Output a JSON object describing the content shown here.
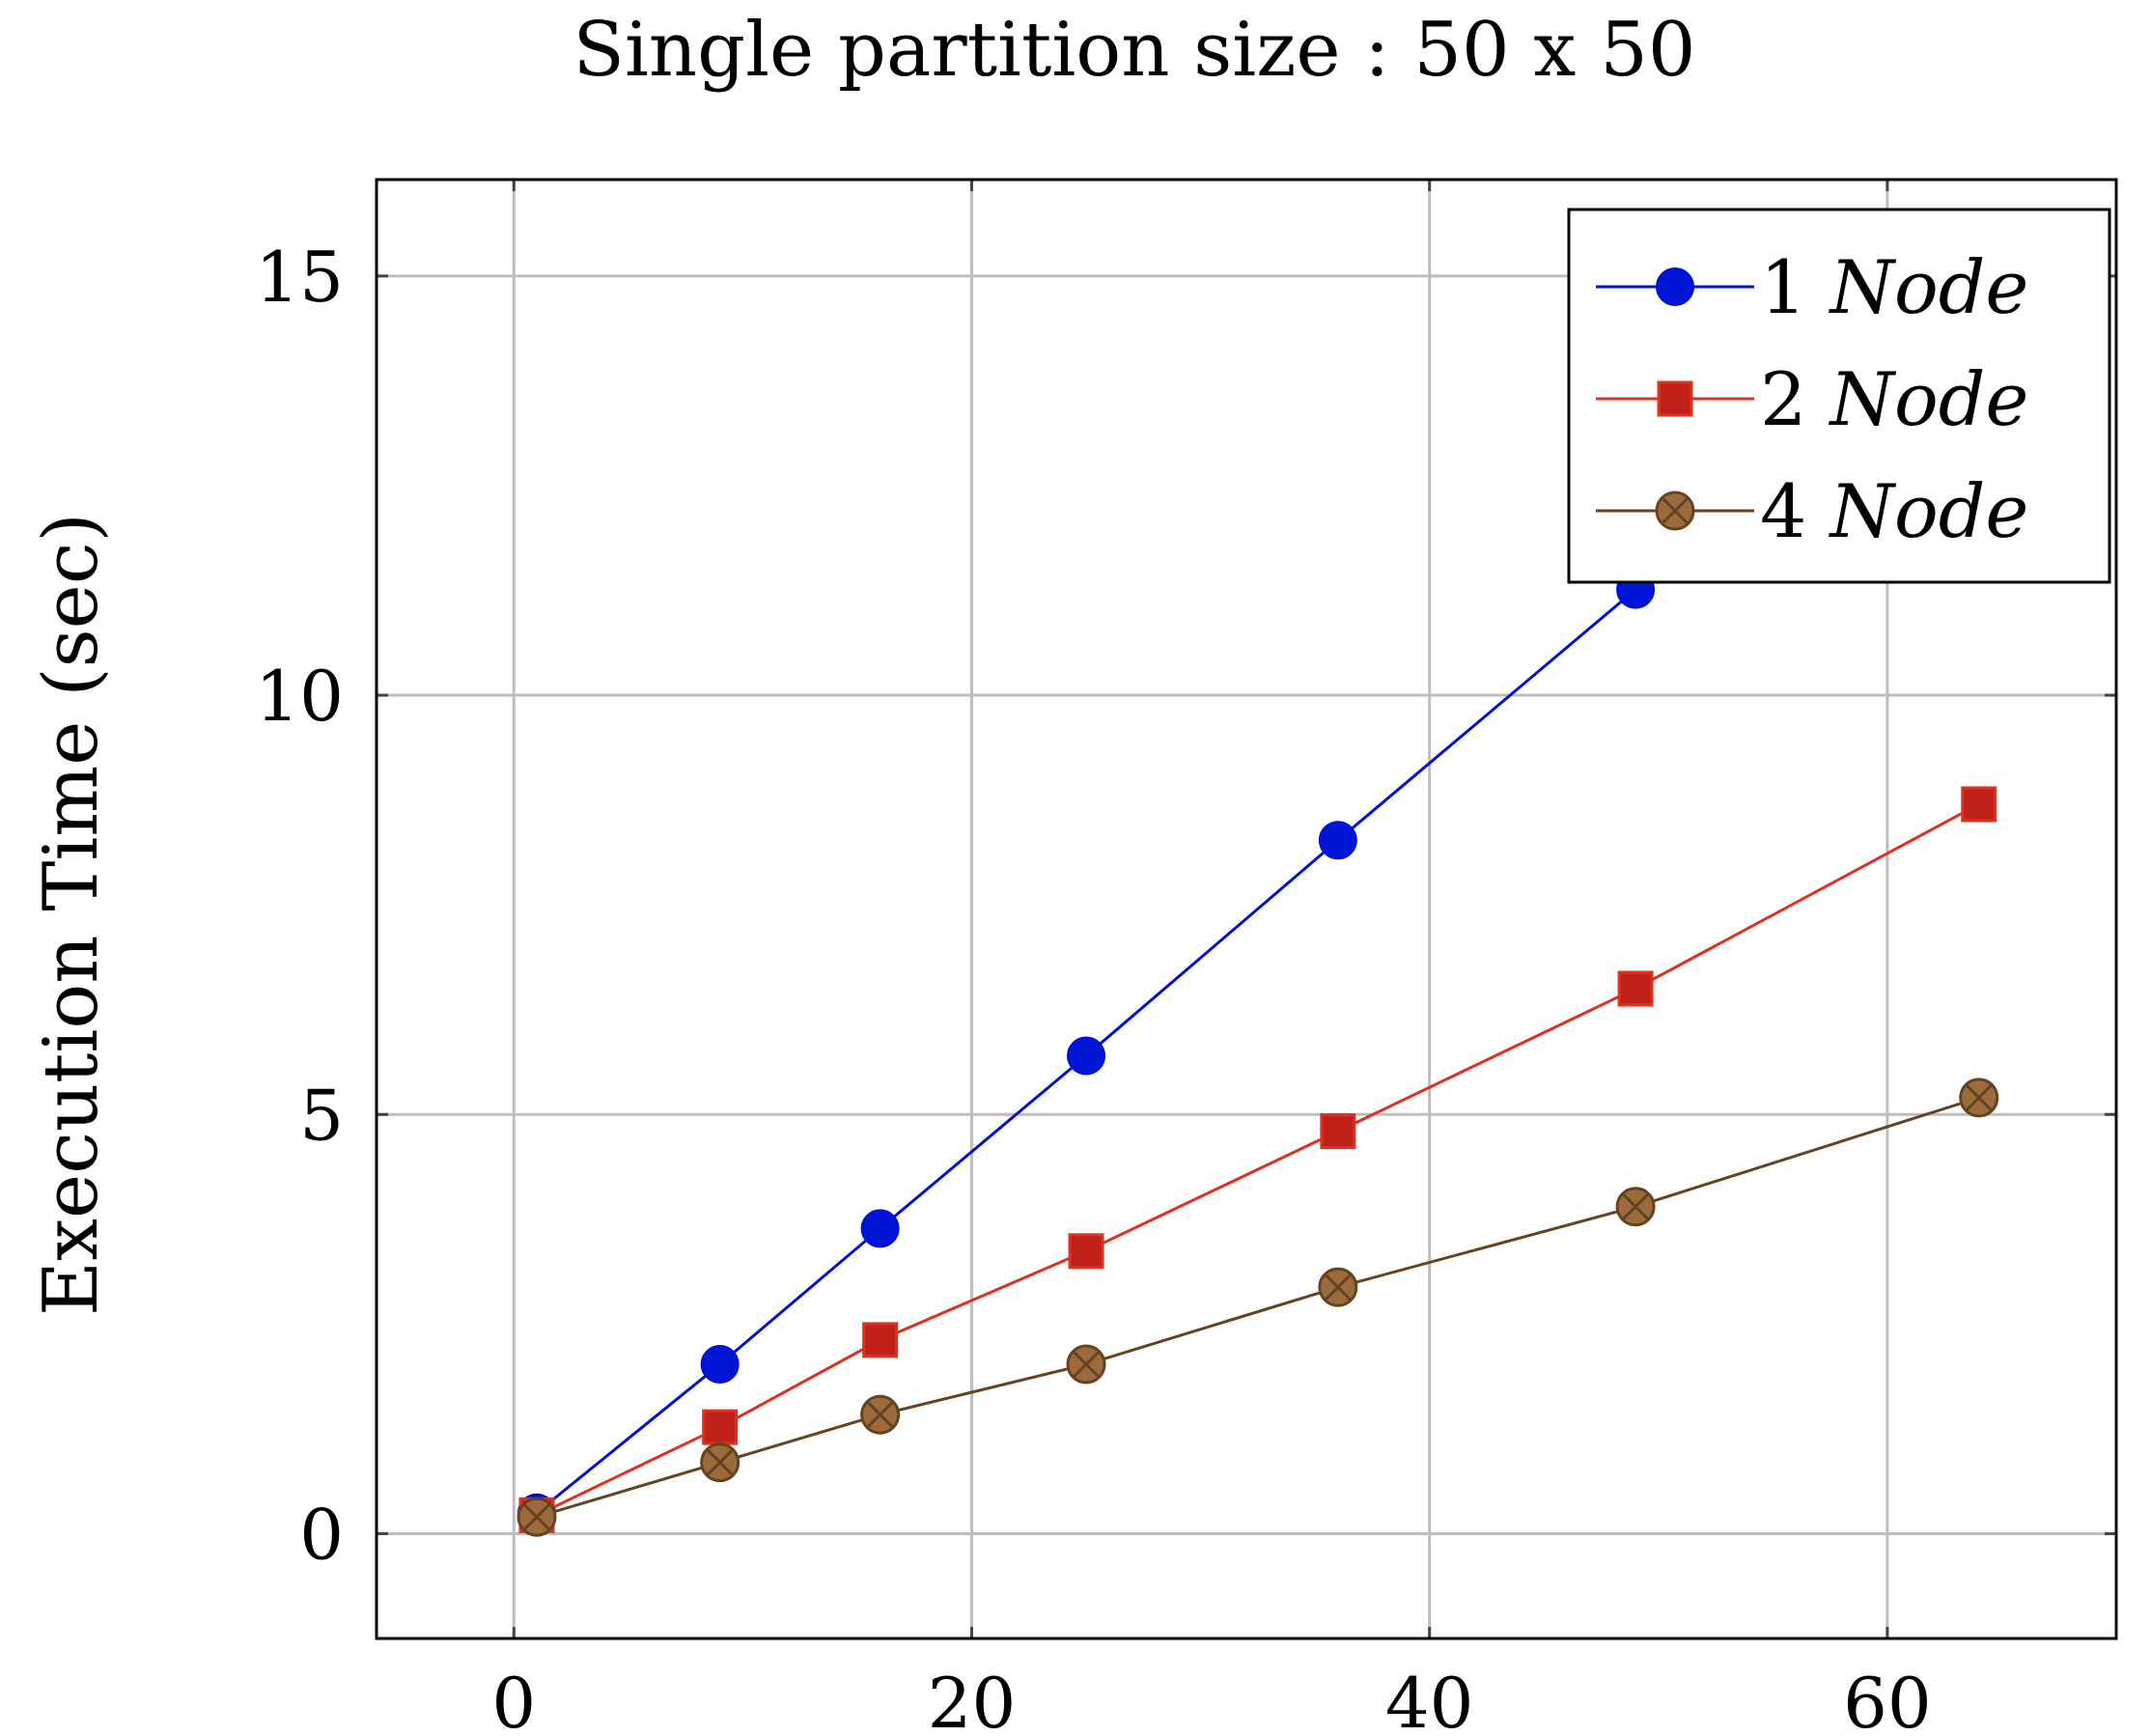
{
  "chart_data": {
    "type": "line",
    "title": "Single partition size : 50 x 50",
    "xlabel": "",
    "ylabel": "Execution Time (sec)",
    "xlim": [
      -6,
      70
    ],
    "ylim": [
      -1.25,
      16.15
    ],
    "xticks": [
      0,
      20,
      40,
      60
    ],
    "yticks": [
      0,
      5,
      10,
      15
    ],
    "grid": true,
    "legend_position": "top-right",
    "series": [
      {
        "name": "1 Node",
        "name_parts": {
          "number": "1",
          "word": "Node"
        },
        "color": "#0010d8",
        "marker": "circle",
        "fill": "#0016d6",
        "x": [
          1,
          9,
          16,
          25,
          36,
          49
        ],
        "y": [
          0.25,
          2.02,
          3.64,
          5.7,
          8.27,
          11.26
        ]
      },
      {
        "name": "2 Node",
        "name_parts": {
          "number": "2",
          "word": "Node"
        },
        "color": "#e0301e",
        "marker": "square",
        "fill": "#c0201a",
        "x": [
          1,
          9,
          16,
          25,
          36,
          49,
          64
        ],
        "y": [
          0.22,
          1.27,
          2.31,
          3.37,
          4.8,
          6.5,
          8.7
        ]
      },
      {
        "name": "4 Node",
        "name_parts": {
          "number": "4",
          "word": "Node"
        },
        "color": "#654321",
        "marker": "circle-x",
        "fill": "#9b6b3c",
        "x": [
          1,
          9,
          16,
          25,
          36,
          49,
          64
        ],
        "y": [
          0.2,
          0.85,
          1.42,
          2.02,
          2.94,
          3.9,
          5.2
        ]
      }
    ]
  }
}
